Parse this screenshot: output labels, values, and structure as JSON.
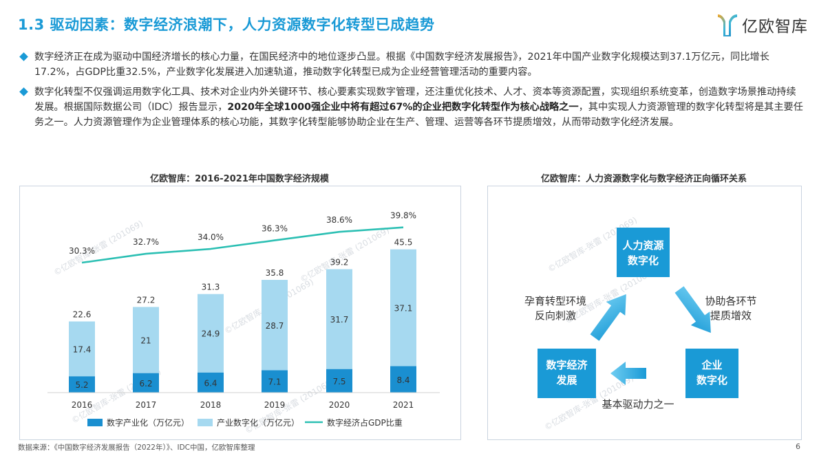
{
  "header": {
    "title": "1.3 驱动因素：数字经济浪潮下，人力资源数字化转型已成趋势",
    "logo_text": "亿欧智库"
  },
  "bullets": [
    {
      "text": "数字经济正在成为驱动中国经济增长的核心力量，在国民经济中的地位逐步凸显。根据《中国数字经济发展报告》，2021年中国产业数字化规模达到37.1万亿元，同比增长17.2%，占GDP比重32.5%，产业数字化发展进入加速轨道，推动数字化转型已成为企业经营管理活动的重要内容。"
    },
    {
      "text_before": "数字化转型不仅强调运用数字化工具、技术对企业内外关键环节、核心要素实现数字管理，还注重优化技术、人才、资本等资源配置，实现组织系统变革，创造数字场景推动持续发展。根据国际数据公司（IDC）报告显示，",
      "text_bold": "2020年全球1000强企业中将有超过67%的企业把数字化转型作为核心战略之一",
      "text_after": "，其中实现人力资源管理的数字化转型将是其主要任务之一。人力资源管理作为企业管理体系的核心功能，其数字化转型能够协助企业在生产、管理、运营等各环节提质增效，从而带动数字化经济发展。"
    }
  ],
  "left_panel": {
    "title": "亿欧智库：2016-2021年中国数字经济规模"
  },
  "right_panel": {
    "title": "亿欧智库：人力资源数字化与数字经济正向循环关系"
  },
  "chart_data": {
    "type": "bar",
    "stacked": true,
    "categories": [
      "2016",
      "2017",
      "2018",
      "2019",
      "2020",
      "2021"
    ],
    "series": [
      {
        "name": "数字产业化（万亿元）",
        "color": "#1a8fd0",
        "values": [
          5.2,
          6.2,
          6.4,
          7.1,
          7.5,
          8.4
        ]
      },
      {
        "name": "产业数字化（万亿元）",
        "color": "#a6d9f0",
        "values": [
          17.4,
          21,
          24.9,
          28.7,
          31.7,
          37.1
        ]
      }
    ],
    "totals": [
      22.6,
      27.2,
      31.3,
      35.8,
      39.2,
      45.5
    ],
    "line_series": {
      "name": "数字经济占GDP比重",
      "color": "#2bbfb3",
      "values": [
        30.3,
        32.7,
        34.0,
        36.3,
        38.6,
        39.8
      ],
      "labels": [
        "30.3%",
        "32.7%",
        "34.0%",
        "36.3%",
        "38.6%",
        "39.8%"
      ]
    },
    "legend_position": "bottom",
    "grid": false
  },
  "cycle_diagram": {
    "node_color": "#1a9ad6",
    "nodes": [
      {
        "id": "hr",
        "label_lines": [
          "人力资源",
          "数字化"
        ]
      },
      {
        "id": "ent",
        "label_lines": [
          "企业",
          "数字化"
        ]
      },
      {
        "id": "de",
        "label_lines": [
          "数字经济",
          "发展"
        ]
      }
    ],
    "edge_labels": {
      "hr_to_ent": [
        "协助各环节",
        "提质增效"
      ],
      "ent_to_de": [
        "基本驱动力之一"
      ],
      "de_to_hr": [
        "孕育转型环境",
        "反向刺激"
      ]
    }
  },
  "watermark": "©亿欧智库-张雷 (201069)",
  "footer": {
    "source": "数据来源：《中国数字经济发展报告（2022年）》、IDC中国，亿欧智库整理",
    "page": "6"
  }
}
